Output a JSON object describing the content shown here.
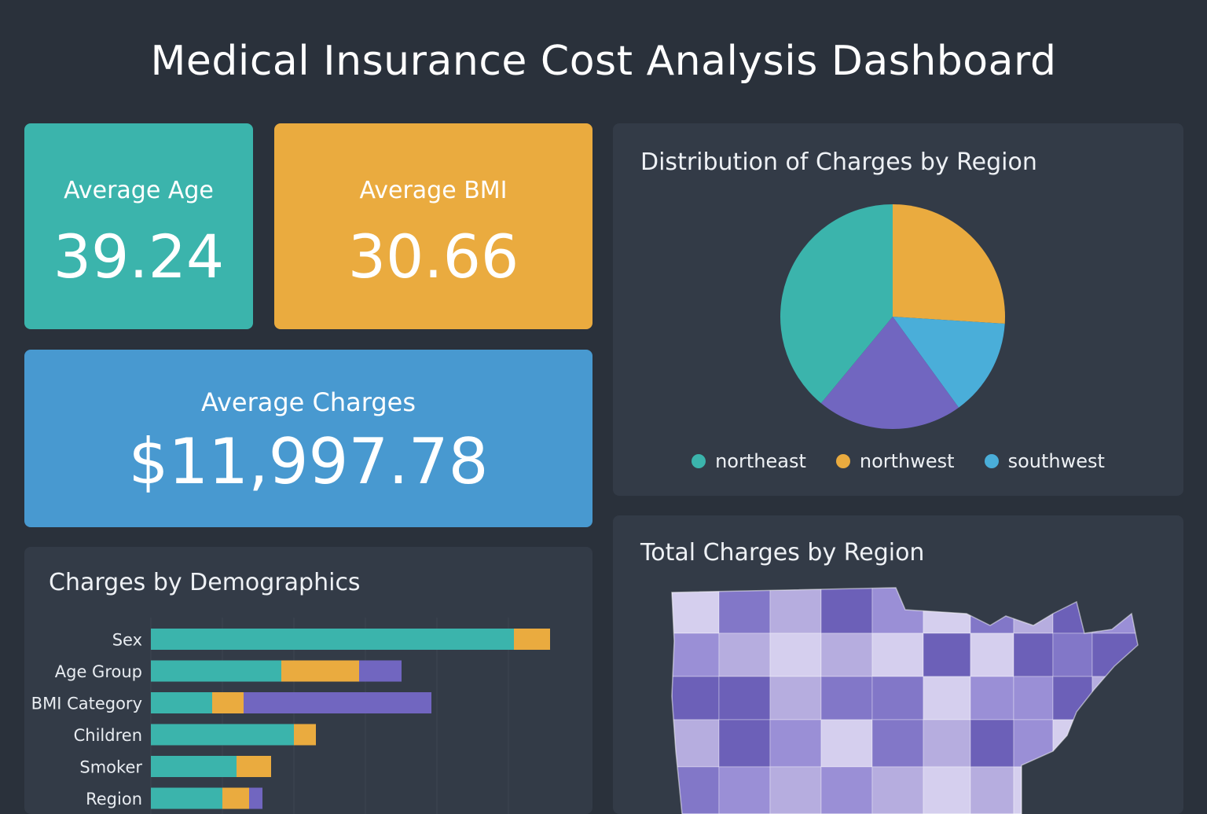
{
  "header": {
    "title": "Medical Insurance Cost Analysis Dashboard"
  },
  "kpis": {
    "age": {
      "label": "Average Age",
      "value": "39.24"
    },
    "bmi": {
      "label": "Average BMI",
      "value": "30.66"
    },
    "charges": {
      "label": "Average Charges",
      "value": "$11,997.78"
    }
  },
  "colors": {
    "teal": "#3bb4ac",
    "orange": "#eaab3f",
    "blue": "#4aaed9",
    "purple": "#7166c0"
  },
  "chart_data": [
    {
      "type": "pie",
      "title": "Distribution of Charges by Region",
      "slices": [
        {
          "label": "northwest",
          "value": 26,
          "color": "#eaab3f"
        },
        {
          "label": "southwest",
          "value": 14,
          "color": "#4aaed9"
        },
        {
          "label": "",
          "value": 21,
          "color": "#7166c0"
        },
        {
          "label": "northeast",
          "value": 39,
          "color": "#3bb4ac"
        }
      ],
      "legend": [
        "northeast",
        "northwest",
        "southwest"
      ],
      "legend_position": "bottom"
    },
    {
      "type": "bar",
      "orientation": "horizontal",
      "stacked": true,
      "title": "Charges by Demographics",
      "categories": [
        "Sex",
        "Age Group",
        "BMI Category",
        "Children",
        "Smoker",
        "Region"
      ],
      "series": [
        {
          "color": "#3bb4ac",
          "values": [
            462,
            166,
            78,
            182,
            109,
            91
          ]
        },
        {
          "color": "#eaab3f",
          "values": [
            46,
            99,
            40,
            28,
            44,
            34
          ]
        },
        {
          "color": "#7166c0",
          "values": [
            0,
            54,
            239,
            0,
            0,
            17
          ]
        }
      ],
      "grid": true
    },
    {
      "type": "map",
      "title": "Total Charges by Region",
      "region": "United States",
      "colors": [
        "#d5cfee",
        "#b6addf",
        "#9a8fd6",
        "#8277c8",
        "#6c60b8"
      ]
    }
  ]
}
